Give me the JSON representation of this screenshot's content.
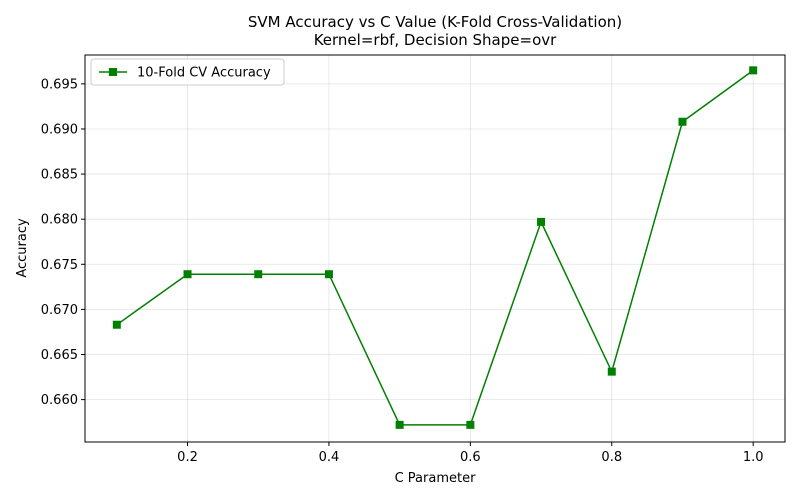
{
  "chart_data": {
    "type": "line",
    "title": "SVM Accuracy vs C Value (K-Fold Cross-Validation)",
    "subtitle": "Kernel=rbf, Decision Shape=ovr",
    "xlabel": "C Parameter",
    "ylabel": "Accuracy",
    "xlim": [
      0.055,
      1.045
    ],
    "ylim": [
      0.6553,
      0.6982
    ],
    "xticks": [
      0.2,
      0.4,
      0.6,
      0.8,
      1.0
    ],
    "xtick_labels": [
      "0.2",
      "0.4",
      "0.6",
      "0.8",
      "1.0"
    ],
    "yticks": [
      0.66,
      0.665,
      0.67,
      0.675,
      0.68,
      0.685,
      0.69,
      0.695
    ],
    "ytick_labels": [
      "0.660",
      "0.665",
      "0.670",
      "0.675",
      "0.680",
      "0.685",
      "0.690",
      "0.695"
    ],
    "grid": true,
    "legend_position": "upper-left",
    "series": [
      {
        "name": "10-Fold CV Accuracy",
        "color": "#008000",
        "marker": "square",
        "x": [
          0.1,
          0.2,
          0.3,
          0.4,
          0.5,
          0.6,
          0.7,
          0.8,
          0.9,
          1.0
        ],
        "y": [
          0.6683,
          0.6739,
          0.6739,
          0.6739,
          0.6572,
          0.6572,
          0.6797,
          0.6631,
          0.6908,
          0.6965
        ]
      }
    ]
  }
}
